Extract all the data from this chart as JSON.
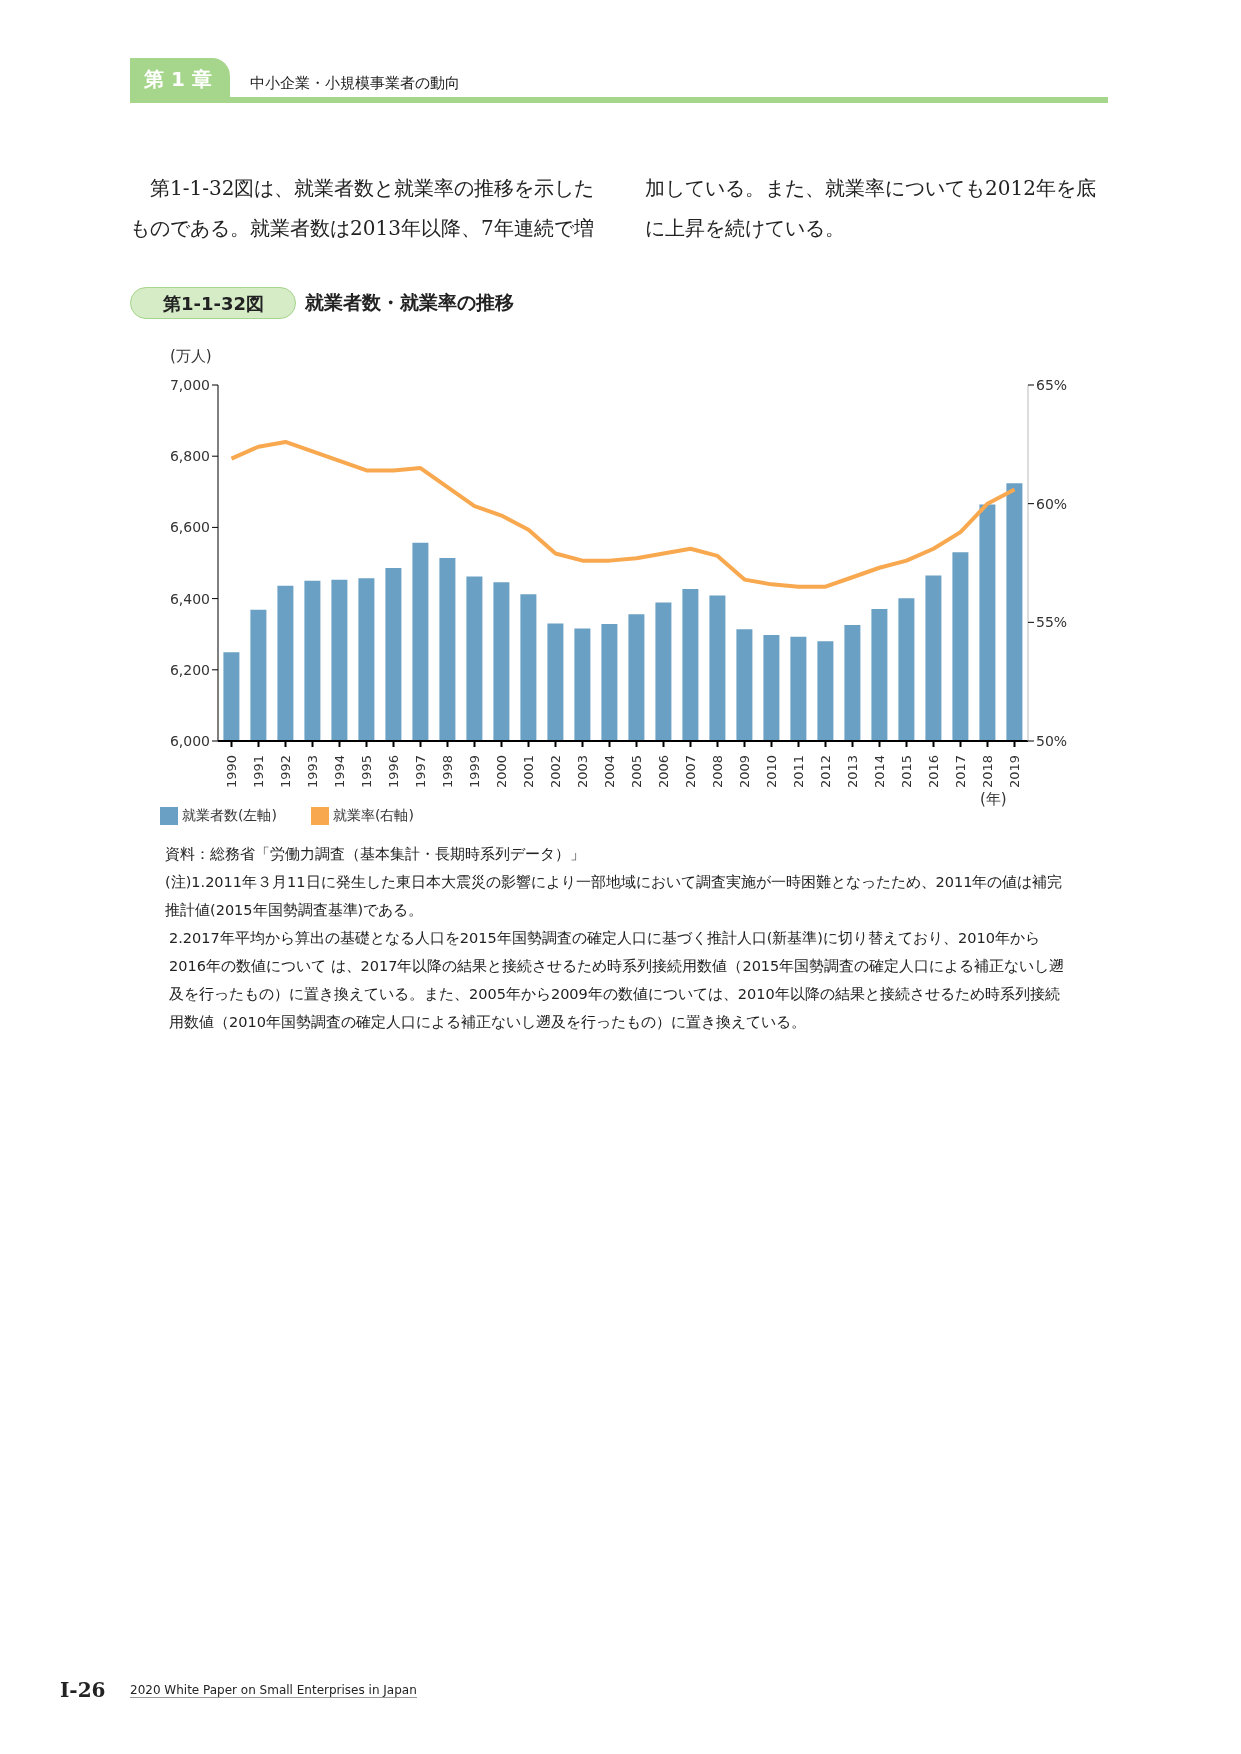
{
  "chart_data": {
    "type": "bar",
    "title": "就業者数・就業率の推移",
    "subtitle": "第1-1-32図",
    "xlabel": "(年)",
    "ylabel": "(万人)",
    "categories": [
      "1990",
      "1991",
      "1992",
      "1993",
      "1994",
      "1995",
      "1996",
      "1997",
      "1998",
      "1999",
      "2000",
      "2001",
      "2002",
      "2003",
      "2004",
      "2005",
      "2006",
      "2007",
      "2008",
      "2009",
      "2010",
      "2011",
      "2012",
      "2013",
      "2014",
      "2015",
      "2016",
      "2017",
      "2018",
      "2019"
    ],
    "series": [
      {
        "name": "就業者数(左軸)",
        "color": "#6aa0c3",
        "values": [
          6249,
          6369,
          6436,
          6450,
          6453,
          6457,
          6486,
          6557,
          6514,
          6462,
          6446,
          6412,
          6330,
          6316,
          6329,
          6356,
          6389,
          6427,
          6409,
          6314,
          6298,
          6293,
          6280,
          6326,
          6371,
          6401,
          6465,
          6530,
          6664,
          6724
        ]
      },
      {
        "name": "就業率(右軸)",
        "type": "line",
        "axis": "y2",
        "color": "#f8a84f",
        "values": [
          61.9,
          62.4,
          62.6,
          62.2,
          61.8,
          61.4,
          61.4,
          61.5,
          60.7,
          59.9,
          59.5,
          58.9,
          57.9,
          57.6,
          57.6,
          57.7,
          57.9,
          58.1,
          57.8,
          56.8,
          56.6,
          56.5,
          56.5,
          56.9,
          57.3,
          57.6,
          58.1,
          58.8,
          60.0,
          60.6
        ]
      }
    ],
    "ylim": [
      6000,
      7000
    ],
    "yticks": [
      {
        "value": 6000,
        "label": "6,000"
      },
      {
        "value": 6200,
        "label": "6,200"
      },
      {
        "value": 6400,
        "label": "6,400"
      },
      {
        "value": 6600,
        "label": "6,600"
      },
      {
        "value": 6800,
        "label": "6,800"
      },
      {
        "value": 7000,
        "label": "7,000"
      }
    ],
    "y2lim": [
      50,
      65
    ],
    "y2ticks": [
      {
        "value": 50,
        "label": "50%"
      },
      {
        "value": 55,
        "label": "55%"
      },
      {
        "value": 60,
        "label": "60%"
      },
      {
        "value": 65,
        "label": "65%"
      }
    ],
    "marker": "none",
    "legend": "bottom left",
    "annotations": [
      "第 1 章",
      "中小企業・小規模事業者の動向",
      "第1-1-32図は、就業者数と就業率の推移を示したものである。就業者数は2013年以降、7年連続で増加している。また、就業率についても2012年を底に上昇を続けている。",
      "資料：総務省「労働力調査（基本集計・長期時系列データ）」",
      "(注)1.2011年３月11日に発生した東日本大震災の影響により一部地域において調査実施が一時困難となったため、2011年の値は補完推計値(2015年国勢調査基準)である。",
      "2.2017年平均から算出の基礎となる人口を2015年国勢調査の確定人口に基づく推計人口(新基準)に切り替えており、2010年から2016年の数値について は、2017年以降の結果と接続させるため時系列接続用数値（2015年国勢調査の確定人口による補正ないし遡及を行ったもの）に置き換えている。また、2005年から2009年の数値については、2010年以降の結果と接続させるため時系列接続用数値（2010年国勢調査の確定人口による補正ないし遡及を行ったもの）に置き換えている。",
      "Ⅰ-26",
      "2020 White Paper on Small Enterprises in Japan"
    ]
  }
}
